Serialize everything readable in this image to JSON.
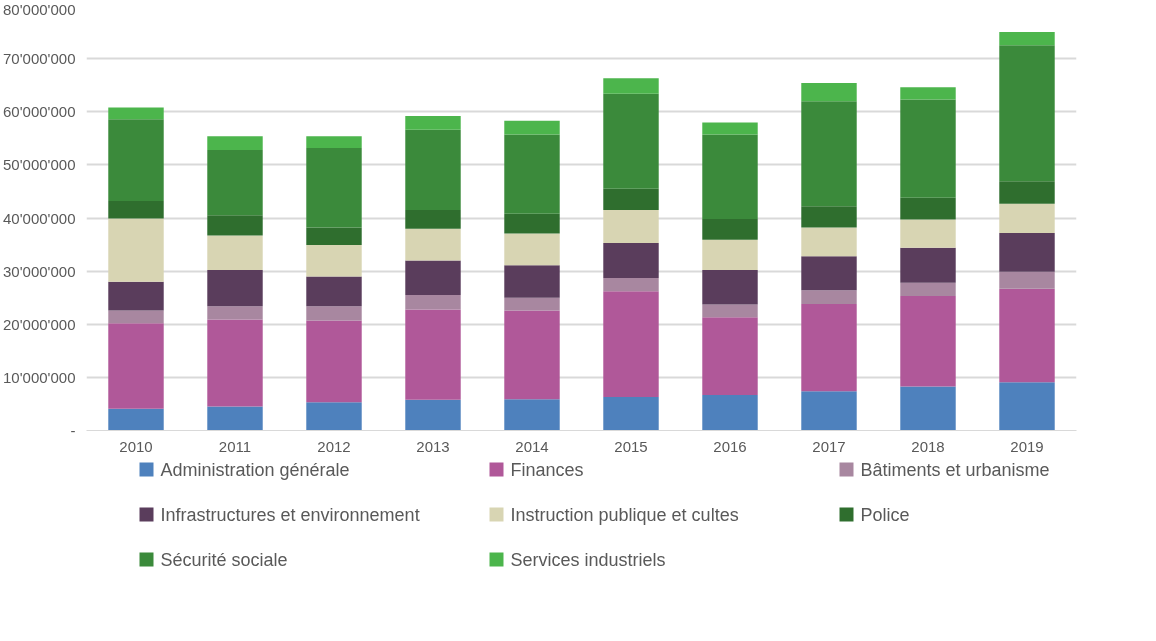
{
  "chart_data": {
    "type": "bar",
    "stacked": true,
    "categories": [
      "2010",
      "2011",
      "2012",
      "2013",
      "2014",
      "2015",
      "2016",
      "2017",
      "2018",
      "2019"
    ],
    "series": [
      {
        "name": "Administration générale",
        "color": "#4e81bd",
        "values": [
          4100000,
          4500000,
          5300000,
          5800000,
          5900000,
          6300000,
          6700000,
          7400000,
          8300000,
          9100000
        ]
      },
      {
        "name": "Finances",
        "color": "#b05899",
        "values": [
          16100000,
          16400000,
          15400000,
          17000000,
          16700000,
          19900000,
          14600000,
          16400000,
          17000000,
          17600000
        ]
      },
      {
        "name": "Bâtiments et urbanisme",
        "color": "#a887a0",
        "values": [
          2400000,
          2500000,
          2700000,
          2700000,
          2400000,
          2500000,
          2400000,
          2600000,
          2500000,
          3200000
        ]
      },
      {
        "name": "Infrastructures et environnement",
        "color": "#5a3d5c",
        "values": [
          5400000,
          6800000,
          5600000,
          6500000,
          6100000,
          6600000,
          6500000,
          6400000,
          6600000,
          7300000
        ]
      },
      {
        "name": "Instruction publique et cultes",
        "color": "#d8d5b3",
        "values": [
          11900000,
          6500000,
          5900000,
          6000000,
          6000000,
          6200000,
          5700000,
          5400000,
          5300000,
          5500000
        ]
      },
      {
        "name": "Police",
        "color": "#2f6e2e",
        "values": [
          3300000,
          3800000,
          3300000,
          3500000,
          3700000,
          4000000,
          3900000,
          4000000,
          4100000,
          4200000
        ]
      },
      {
        "name": "Sécurité sociale",
        "color": "#3b8a3b",
        "values": [
          15400000,
          12300000,
          15000000,
          15100000,
          14900000,
          17900000,
          15900000,
          19800000,
          18500000,
          25600000
        ]
      },
      {
        "name": "Services industriels",
        "color": "#4cb54c",
        "values": [
          2200000,
          2600000,
          2200000,
          2600000,
          2600000,
          2900000,
          2300000,
          3400000,
          2300000,
          2500000
        ]
      }
    ],
    "ylim": [
      0,
      80000000
    ],
    "yticks": [
      {
        "value": 0,
        "label": "-"
      },
      {
        "value": 10000000,
        "label": "10'000'000"
      },
      {
        "value": 20000000,
        "label": "20'000'000"
      },
      {
        "value": 30000000,
        "label": "30'000'000"
      },
      {
        "value": 40000000,
        "label": "40'000'000"
      },
      {
        "value": 50000000,
        "label": "50'000'000"
      },
      {
        "value": 60000000,
        "label": "60'000'000"
      },
      {
        "value": 70000000,
        "label": "70'000'000"
      },
      {
        "value": 80000000,
        "label": "80'000'000"
      }
    ],
    "grid": "y",
    "legend": "bottom"
  }
}
